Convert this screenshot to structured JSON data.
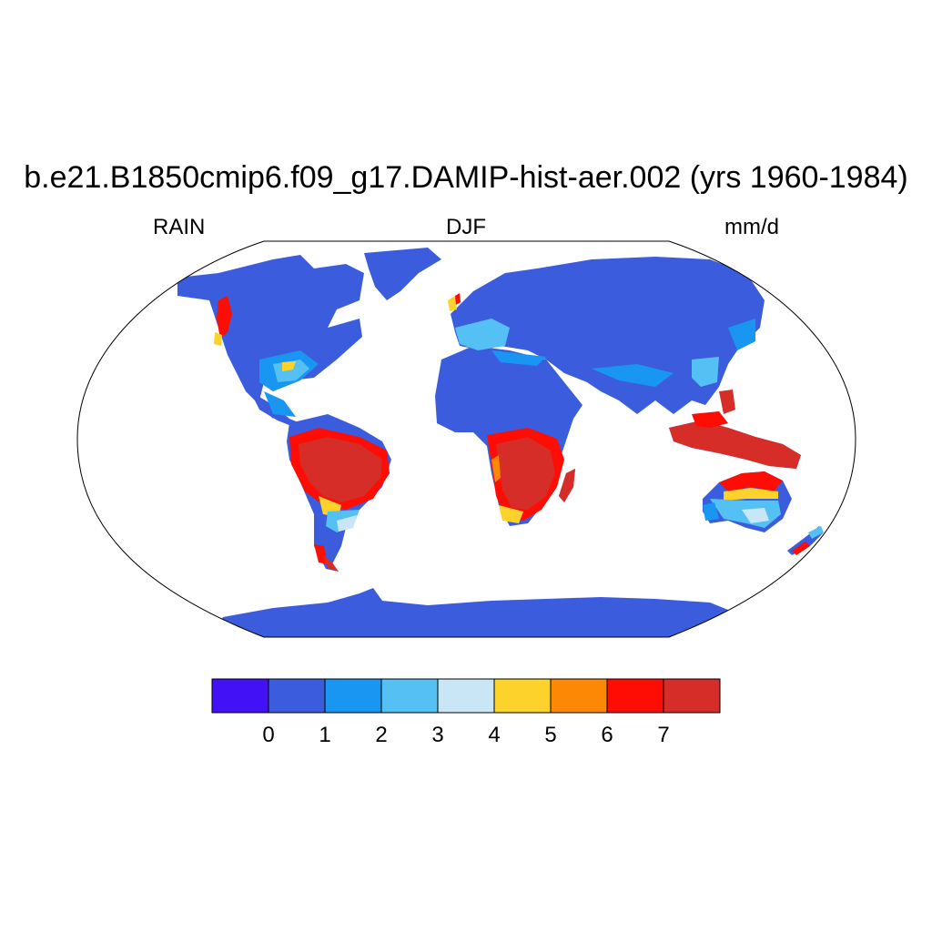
{
  "title": "b.e21.B1850cmip6.f09_g17.DAMIP-hist-aer.002 (yrs 1960-1984)",
  "left_label": "RAIN",
  "center_label": "DJF",
  "right_label": "mm/d",
  "colorbar": {
    "colors": [
      "#4311f5",
      "#3b5ddd",
      "#1996f2",
      "#55c0f4",
      "#c9e6f7",
      "#fdd22b",
      "#fc8805",
      "#fd0d04",
      "#d62d29"
    ],
    "tick_labels": [
      "0",
      "1",
      "2",
      "3",
      "4",
      "5",
      "6",
      "7"
    ]
  },
  "map": {
    "projection": "Robinson",
    "land_base_color": "#3b5ddd",
    "outline_color": "#000000"
  }
}
